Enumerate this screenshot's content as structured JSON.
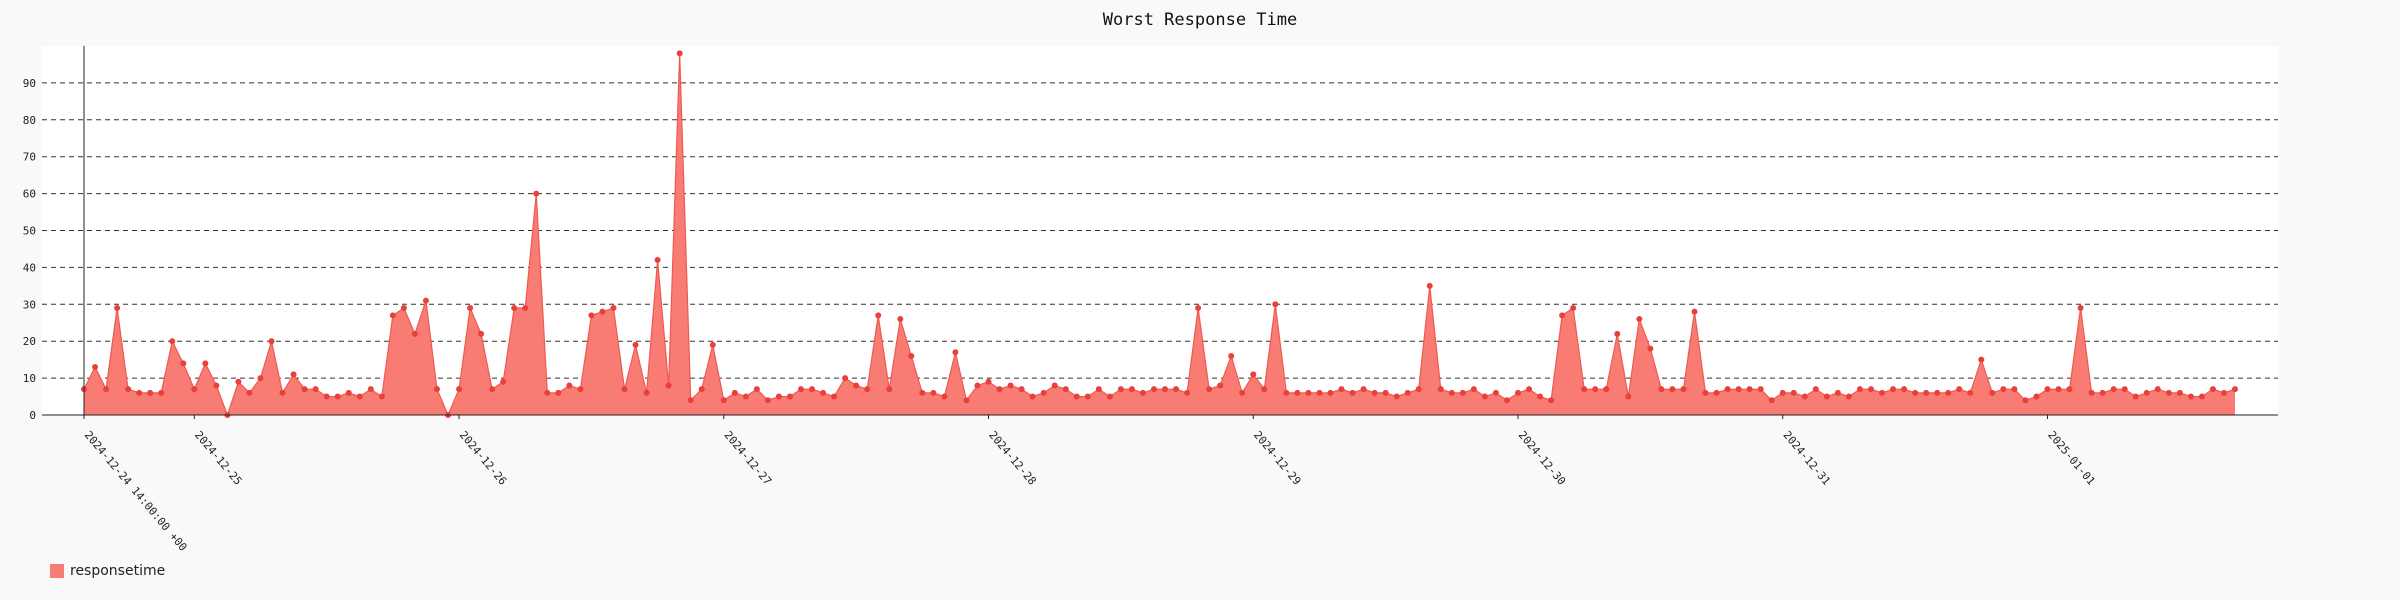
{
  "chart_data": {
    "type": "area",
    "title": "Worst Response Time",
    "xlabel": "",
    "ylabel": "",
    "ylim": [
      0,
      100
    ],
    "y_ticks": [
      0,
      10,
      20,
      30,
      40,
      50,
      60,
      70,
      80,
      90
    ],
    "grid": "horizontal-dashed",
    "legend_position": "bottom-left",
    "x_start": "2024-12-24 14:00",
    "interval_hours": 1,
    "x_tick_labels": [
      {
        "index": 0,
        "label": "2024-12-24 14:00:00 +00"
      },
      {
        "index": 10,
        "label": "2024-12-25"
      },
      {
        "index": 34,
        "label": "2024-12-26"
      },
      {
        "index": 58,
        "label": "2024-12-27"
      },
      {
        "index": 82,
        "label": "2024-12-28"
      },
      {
        "index": 106,
        "label": "2024-12-29"
      },
      {
        "index": 130,
        "label": "2024-12-30"
      },
      {
        "index": 154,
        "label": "2024-12-31"
      },
      {
        "index": 178,
        "label": "2025-01-01"
      }
    ],
    "series": [
      {
        "name": "responsetime",
        "color": "#f87b74",
        "marker_color": "#e8403a",
        "values": [
          7,
          13,
          7,
          29,
          7,
          6,
          6,
          6,
          20,
          14,
          7,
          14,
          8,
          0,
          9,
          6,
          10,
          20,
          6,
          11,
          7,
          7,
          5,
          5,
          6,
          5,
          7,
          5,
          27,
          29,
          22,
          31,
          7,
          0,
          7,
          29,
          22,
          7,
          9,
          29,
          29,
          60,
          6,
          6,
          8,
          7,
          27,
          28,
          29,
          7,
          19,
          6,
          42,
          8,
          98,
          4,
          7,
          19,
          4,
          6,
          5,
          7,
          4,
          5,
          5,
          7,
          7,
          6,
          5,
          10,
          8,
          7,
          27,
          7,
          26,
          16,
          6,
          6,
          5,
          17,
          4,
          8,
          9,
          7,
          8,
          7,
          5,
          6,
          8,
          7,
          5,
          5,
          7,
          5,
          7,
          7,
          6,
          7,
          7,
          7,
          6,
          29,
          7,
          8,
          16,
          6,
          11,
          7,
          30,
          6,
          6,
          6,
          6,
          6,
          7,
          6,
          7,
          6,
          6,
          5,
          6,
          7,
          35,
          7,
          6,
          6,
          7,
          5,
          6,
          4,
          6,
          7,
          5,
          4,
          27,
          29,
          7,
          7,
          7,
          22,
          5,
          26,
          18,
          7,
          7,
          7,
          28,
          6,
          6,
          7,
          7,
          7,
          7,
          4,
          6,
          6,
          5,
          7,
          5,
          6,
          5,
          7,
          7,
          6,
          7,
          7,
          6,
          6,
          6,
          6,
          7,
          6,
          15,
          6,
          7,
          7,
          4,
          5,
          7,
          7,
          7,
          29,
          6,
          6,
          7,
          7,
          5,
          6,
          7,
          6,
          6,
          5,
          5,
          7,
          6,
          7
        ]
      }
    ]
  }
}
